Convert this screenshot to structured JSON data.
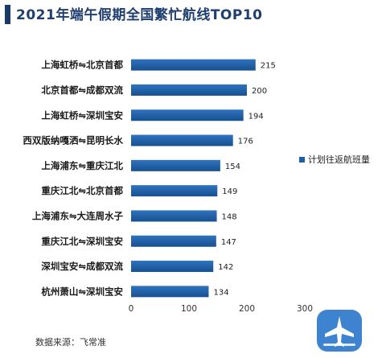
{
  "title": "2021年端午假期全国繁忙航线TOP10",
  "source": "数据来源：飞常准",
  "colors": {
    "title": "#1f3f6e",
    "bar": "#1f5fa8",
    "logo_bg": "#3d83cf"
  },
  "chart_data": {
    "type": "bar",
    "orientation": "horizontal",
    "categories": [
      "上海虹桥⇋北京首都",
      "北京首都⇋成都双流",
      "上海虹桥⇋深圳宝安",
      "西双版纳嘎洒⇋昆明长水",
      "上海浦东⇋重庆江北",
      "重庆江北⇋北京首都",
      "上海浦东⇋大连周水子",
      "重庆江北⇋深圳宝安",
      "深圳宝安⇋成都双流",
      "杭州萧山⇋深圳宝安"
    ],
    "series": [
      {
        "name": "计划往返航班量",
        "values": [
          215,
          200,
          194,
          176,
          154,
          149,
          148,
          147,
          142,
          134
        ]
      }
    ],
    "xlim": [
      0,
      300
    ],
    "xticks": [
      "0",
      "100",
      "200",
      "300"
    ],
    "legend": "right",
    "grid": false
  }
}
